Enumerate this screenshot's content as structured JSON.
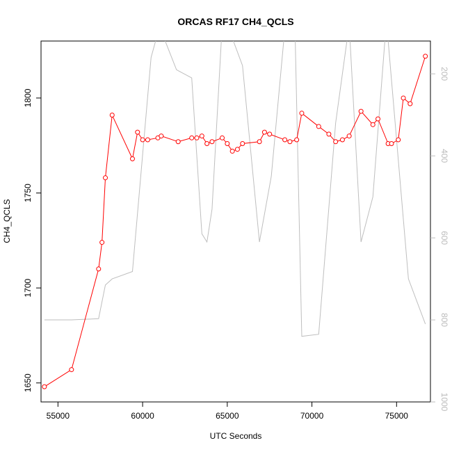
{
  "chart_data": {
    "type": "line",
    "title": "ORCAS RF17 CH4_QCLS",
    "xlabel": "UTC Seconds",
    "ylabel": "CH4_QCLS",
    "xlim": [
      54000,
      77000
    ],
    "ylim": [
      1640,
      1830
    ],
    "x_ticks": [
      55000,
      60000,
      65000,
      70000,
      75000
    ],
    "y_ticks": [
      1650,
      1700,
      1750,
      1800
    ],
    "y2_ticks": [
      200,
      400,
      600,
      800,
      1000
    ],
    "y2lim_inverted": [
      1000,
      120
    ],
    "colors": {
      "primary": "#ff0000",
      "secondary": "#bebebe"
    },
    "series": [
      {
        "x": [
          54200,
          55800,
          57400,
          57600,
          57800,
          58200,
          59400,
          59700,
          60000,
          60300,
          60900,
          61100,
          62100,
          62900,
          63200,
          63500,
          63800,
          64100,
          64700,
          65000,
          65300,
          65600,
          65900,
          66900,
          67200,
          67500,
          68400,
          68700,
          69100,
          69400,
          70400,
          71000,
          71400,
          71800,
          72200,
          72900,
          73600,
          73900,
          74500,
          74700,
          75100,
          75400,
          75800,
          76700
        ],
        "y": [
          1648,
          1657,
          1710,
          1724,
          1758,
          1791,
          1768,
          1782,
          1778,
          1778,
          1779,
          1780,
          1777,
          1779,
          1779,
          1780,
          1776,
          1777,
          1779,
          1776,
          1772,
          1773,
          1776,
          1777,
          1782,
          1781,
          1778,
          1777,
          1778,
          1792,
          1785,
          1781,
          1777,
          1778,
          1780,
          1793,
          1786,
          1789,
          1776,
          1776,
          1778,
          1800,
          1797,
          1822
        ]
      },
      {
        "x": [
          54200,
          55800,
          57400,
          57800,
          58200,
          59400,
          60500,
          61000,
          62000,
          62900,
          63500,
          63800,
          64100,
          64700,
          65000,
          65900,
          66900,
          67600,
          68400,
          69000,
          69400,
          70400,
          71400,
          72200,
          72900,
          73600,
          74400,
          75700,
          76700
        ],
        "y": [
          800,
          800,
          797,
          715,
          700,
          682,
          160,
          85,
          190,
          210,
          590,
          610,
          530,
          80,
          80,
          180,
          610,
          450,
          90,
          90,
          840,
          835,
          320,
          80,
          610,
          500,
          70,
          700,
          810
        ]
      }
    ]
  }
}
